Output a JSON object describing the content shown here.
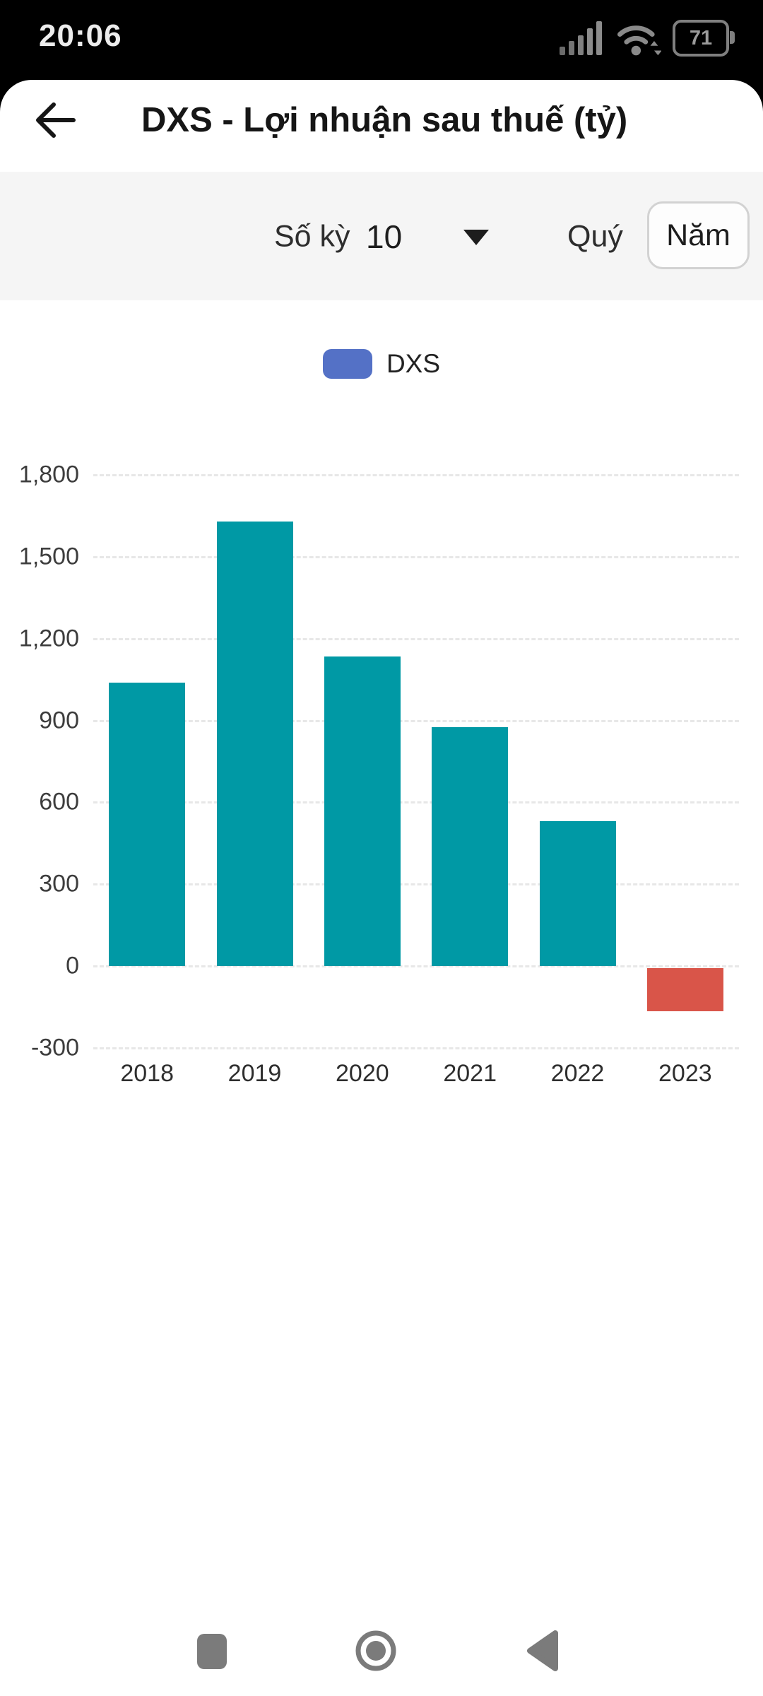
{
  "status_bar": {
    "time": "20:06",
    "battery_percent": "71",
    "icons": [
      "signal-bars",
      "wifi",
      "battery"
    ]
  },
  "header": {
    "title": "DXS - Lợi nhuận sau thuế (tỷ)"
  },
  "controls": {
    "period_label": "Số kỳ",
    "period_value": "10",
    "quarter_label": "Quý",
    "year_label": "Năm",
    "selected_toggle": "Năm"
  },
  "legend": {
    "label": "DXS",
    "swatch_color": "#5471c6"
  },
  "chart_data": {
    "type": "bar",
    "title": "DXS - Lợi nhuận sau thuế (tỷ)",
    "categories": [
      "2018",
      "2019",
      "2020",
      "2021",
      "2022",
      "2023"
    ],
    "values": [
      1040,
      1630,
      1135,
      875,
      530,
      -160
    ],
    "xlabel": "",
    "ylabel": "tỷ",
    "ylim": [
      -300,
      1800
    ],
    "yticks": [
      1800,
      1500,
      1200,
      900,
      600,
      300,
      0,
      -300
    ],
    "ytick_labels": [
      "1,800",
      "1,500",
      "1,200",
      "900",
      "600",
      "300",
      "0",
      "-300"
    ],
    "grid": "horizontal-dashed",
    "legend_entries": [
      "DXS"
    ],
    "legend_position": "top-center",
    "positive_color": "#0099a5",
    "negative_color": "#d95549"
  },
  "nav_bar": {
    "icons": [
      "recents",
      "home",
      "back"
    ]
  }
}
